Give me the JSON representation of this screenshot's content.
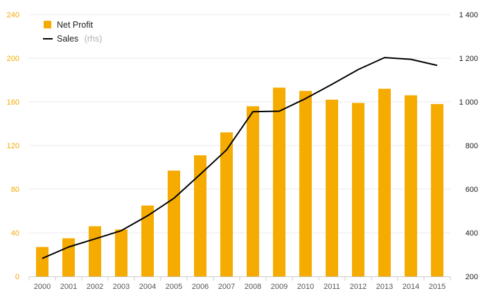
{
  "chart_data": {
    "type": "bar",
    "categories": [
      "2000",
      "2001",
      "2002",
      "2003",
      "2004",
      "2005",
      "2006",
      "2007",
      "2008",
      "2009",
      "2010",
      "2011",
      "2012",
      "2013",
      "2014",
      "2015"
    ],
    "series": [
      {
        "name": "Net Profit",
        "type": "bar",
        "axis": "left",
        "color": "#f5ab00",
        "values": [
          27,
          35,
          46,
          43,
          65,
          97,
          111,
          132,
          156,
          173,
          170,
          162,
          159,
          172,
          166,
          158
        ]
      },
      {
        "name": "Sales",
        "name_suffix": "(rhs)",
        "type": "line",
        "axis": "right",
        "color": "#000000",
        "values": [
          283,
          335,
          372,
          410,
          478,
          558,
          668,
          780,
          955,
          957,
          1015,
          1080,
          1148,
          1203,
          1195,
          1167
        ]
      }
    ],
    "y_left": {
      "ylim": [
        0,
        240
      ],
      "ticks": [
        "0",
        "40",
        "80",
        "120",
        "160",
        "200",
        "240"
      ],
      "color": "#f5a800"
    },
    "y_right": {
      "ylim": [
        200,
        1400
      ],
      "ticks": [
        "200",
        "400",
        "600",
        "800",
        "1 000",
        "1 200",
        "1 400"
      ]
    },
    "grid": true,
    "legend_position": "top-left"
  }
}
